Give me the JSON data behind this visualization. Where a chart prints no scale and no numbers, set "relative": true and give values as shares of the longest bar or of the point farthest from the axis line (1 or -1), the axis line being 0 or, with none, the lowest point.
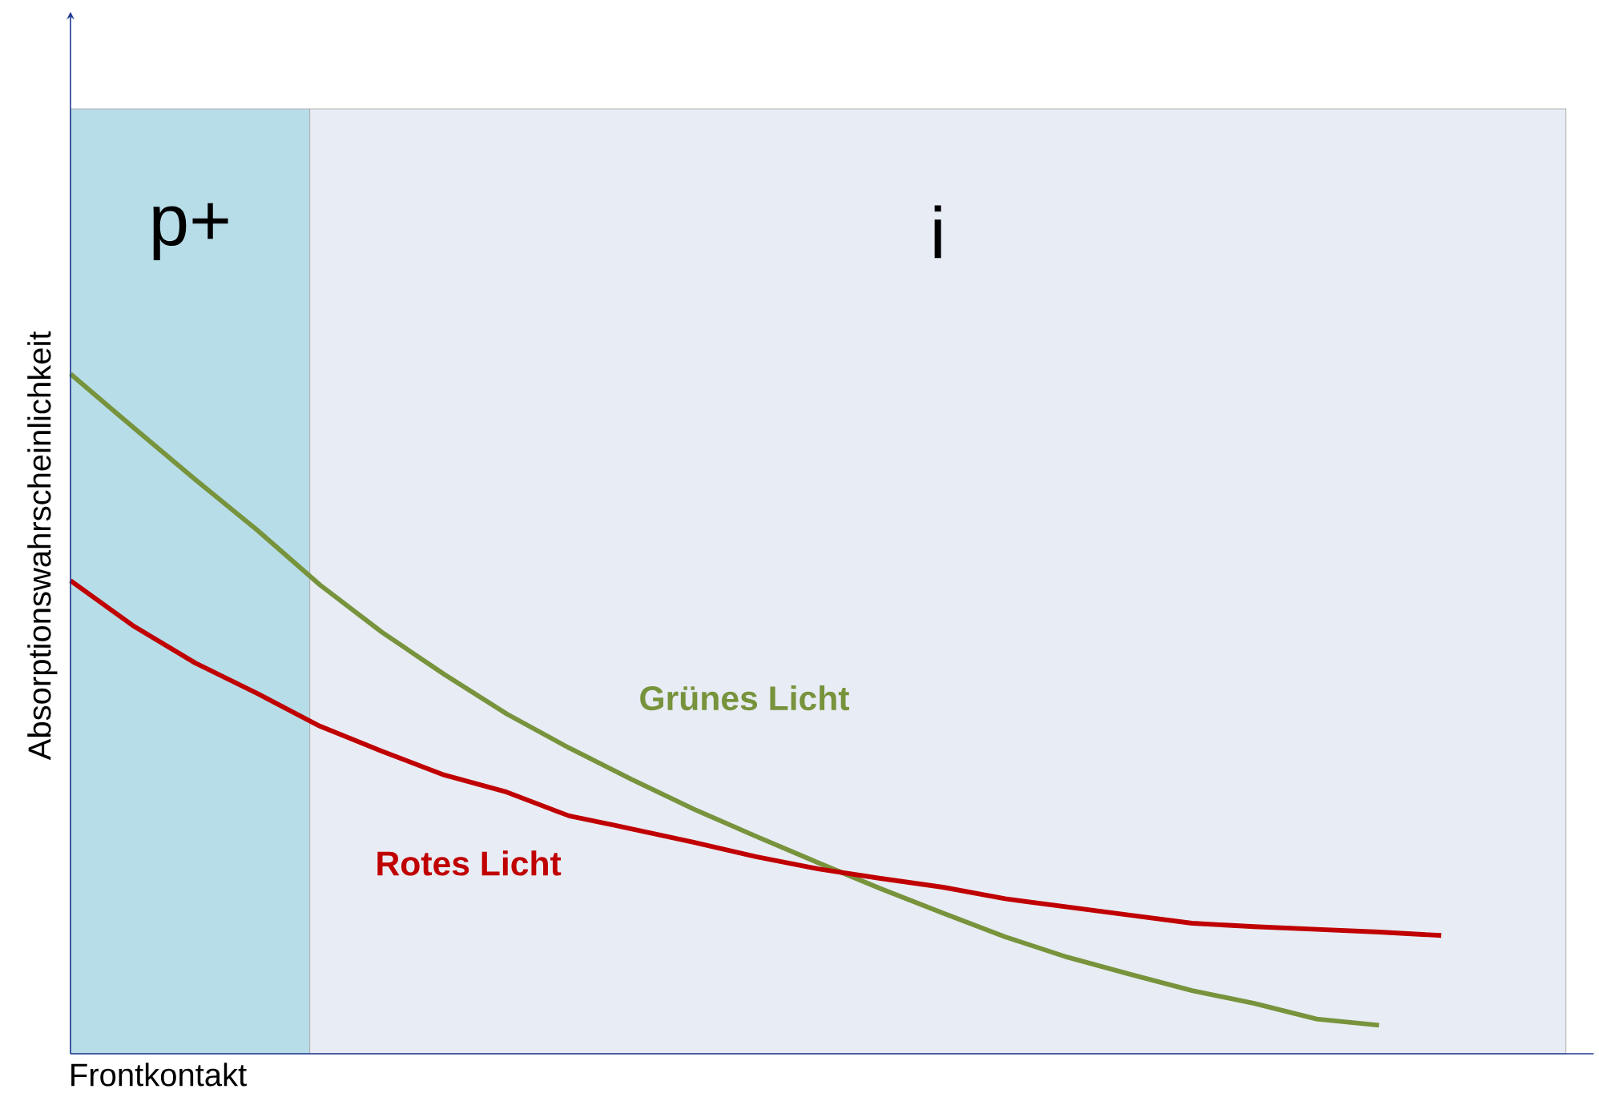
{
  "chart_data": {
    "type": "line",
    "relative": true,
    "xlabel": "Frontkontakt",
    "ylabel": "Absorptionswahrscheinlichkeit",
    "categories": [
      null,
      null,
      null,
      null,
      null,
      null,
      null,
      null,
      null,
      null,
      null,
      null,
      null,
      null,
      null,
      null,
      null,
      null,
      null,
      null,
      null,
      null,
      null
    ],
    "legend": false,
    "marker": "none",
    "line_style": "solid",
    "annotations": [
      "p+",
      "i"
    ],
    "series": [
      {
        "name": "Grünes Licht",
        "color": "#77933c",
        "values": [
          1,
          0.922,
          0.845,
          0.77,
          0.69,
          0.62,
          0.558,
          0.5,
          0.45,
          0.404,
          0.36,
          0.32,
          0.281,
          0.243,
          0.207,
          0.172,
          0.142,
          0.117,
          0.093,
          0.074,
          0.051,
          0.042,
          null
        ]
      },
      {
        "name": "Rotes Licht",
        "color": "#c00000",
        "values": [
          0.696,
          0.63,
          0.575,
          0.53,
          0.482,
          0.445,
          0.41,
          0.385,
          0.35,
          0.331,
          0.311,
          0.29,
          0.272,
          0.258,
          0.245,
          0.228,
          0.216,
          0.204,
          0.192,
          0.187,
          0.183,
          0.179,
          0.174
        ]
      }
    ]
  }
}
